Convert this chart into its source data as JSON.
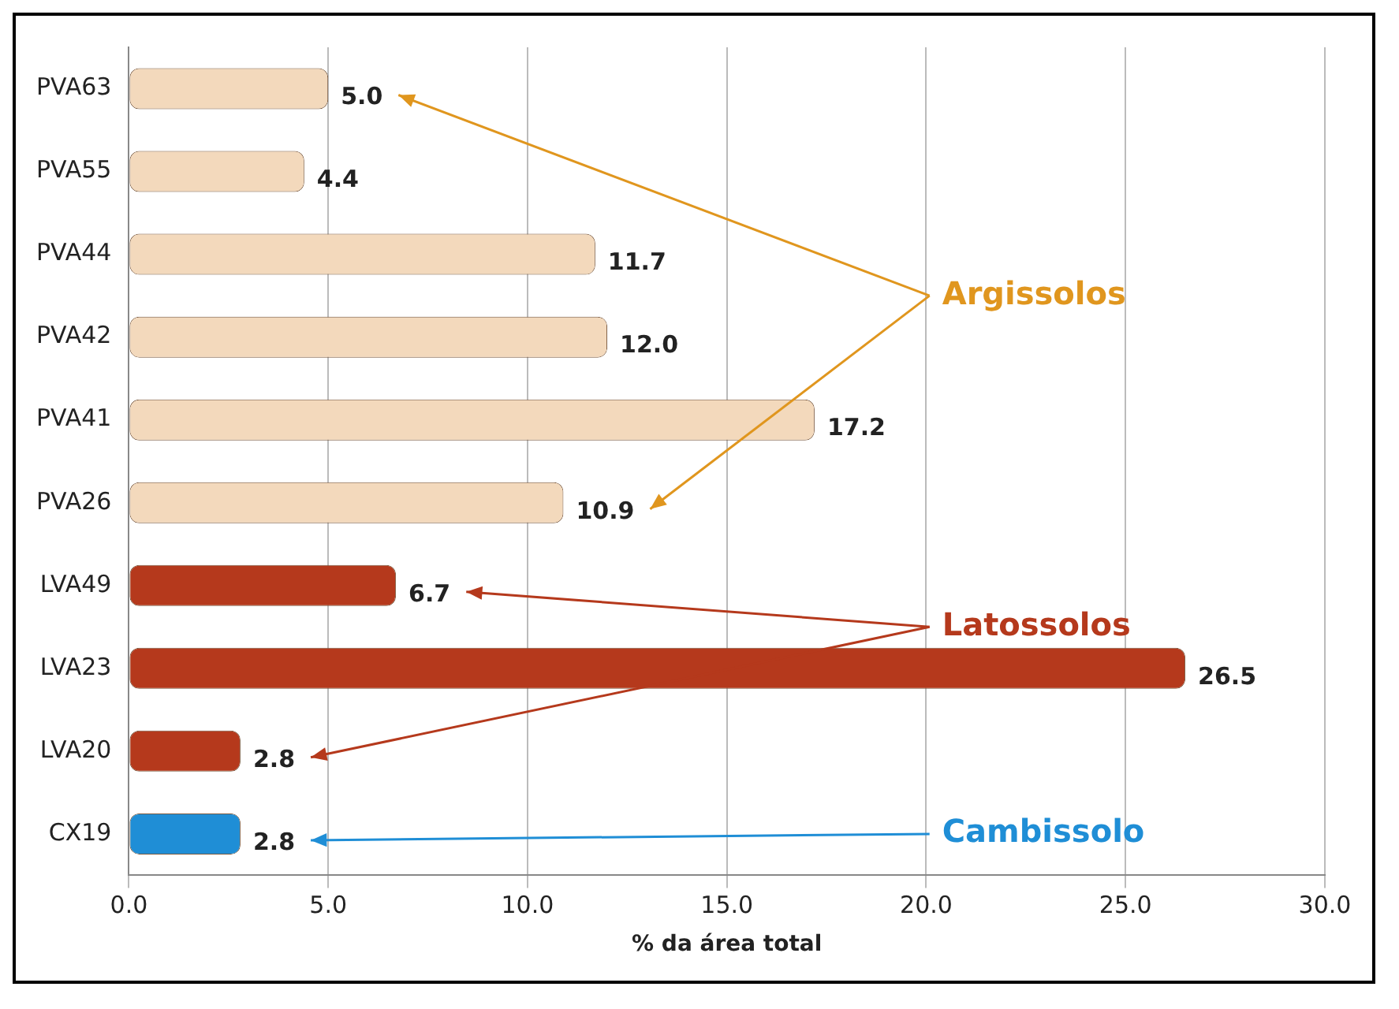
{
  "chart_data": {
    "type": "bar",
    "orientation": "horizontal",
    "categories": [
      "PVA63",
      "PVA55",
      "PVA44",
      "PVA42",
      "PVA41",
      "PVA26",
      "LVA49",
      "LVA23",
      "LVA20",
      "CX19"
    ],
    "values": [
      5.0,
      4.4,
      11.7,
      12.0,
      17.2,
      10.9,
      6.7,
      26.5,
      2.8,
      2.8
    ],
    "value_labels": [
      "5.0",
      "4.4",
      "11.7",
      "12.0",
      "17.2",
      "10.9",
      "6.7",
      "26.5",
      "2.8",
      "2.8"
    ],
    "colors": [
      "#f3d9bc",
      "#f3d9bc",
      "#f3d9bc",
      "#f3d9bc",
      "#f3d9bc",
      "#f3d9bc",
      "#b5391c",
      "#b5391c",
      "#b5391c",
      "#1f8ed6"
    ],
    "xlabel": "% da área total",
    "xlim": [
      0,
      30
    ],
    "xticks": [
      {
        "value": 0,
        "label": "0.0"
      },
      {
        "value": 5,
        "label": "5.0"
      },
      {
        "value": 10,
        "label": "10.0"
      },
      {
        "value": 15,
        "label": "15.0"
      },
      {
        "value": 20,
        "label": "20.0"
      },
      {
        "value": 25,
        "label": "25.0"
      },
      {
        "value": 30,
        "label": "30.0"
      }
    ],
    "grid": "x",
    "legend": false,
    "annotations": [
      "Argissolos",
      "Latossolos",
      "Cambissolo"
    ]
  }
}
